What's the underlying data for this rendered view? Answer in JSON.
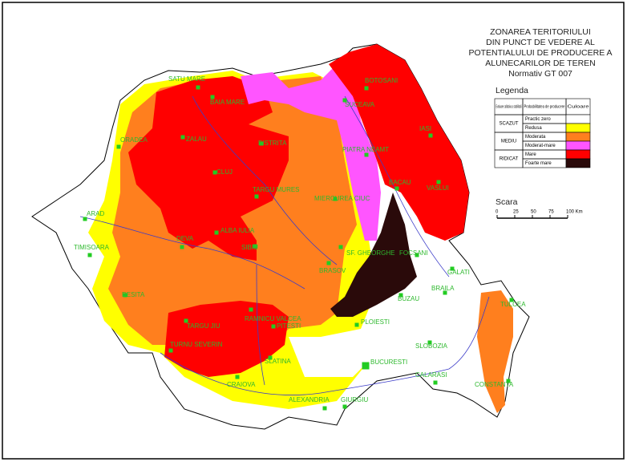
{
  "title": {
    "lines": [
      "ZONAREA TERITORIULUI",
      "DIN PUNCT DE VEDERE AL",
      "POTENTIALULUI DE PRODUCERE A",
      "ALUNECARILOR DE TEREN",
      "Normativ GT 007"
    ]
  },
  "legend": {
    "title": "Legenda",
    "headers": [
      "Evaluare calitativa a stabilitatii",
      "Probabilitatea de producere",
      "Culoare"
    ],
    "groups": [
      {
        "name": "SCAZUT",
        "rows": [
          {
            "label": "Practic zero",
            "color": "#ffffff"
          },
          {
            "label": "Redusa",
            "color": "#ffff00"
          }
        ]
      },
      {
        "name": "MEDIU",
        "rows": [
          {
            "label": "Moderata",
            "color": "#ff7f1e"
          },
          {
            "label": "Moderat-mare",
            "color": "#ff55ff"
          }
        ]
      },
      {
        "name": "RIDICAT",
        "rows": [
          {
            "label": "Mare",
            "color": "#ff0000"
          },
          {
            "label": "Foarte mare",
            "color": "#2a0a0a"
          }
        ]
      }
    ]
  },
  "scale": {
    "title": "Scara",
    "labels": [
      "0",
      "25",
      "50",
      "75",
      "100 Km"
    ]
  },
  "cities": [
    "SATU MARE",
    "BAIA MARE",
    "ORADEA",
    "ZALAU",
    "BISTRITA",
    "CLUJ",
    "TARGU MURES",
    "ARAD",
    "TIMISOARA",
    "DEVA",
    "ALBA IULIA",
    "SIBIU",
    "RESITA",
    "TARGU JIU",
    "RAMNICU VALCEA",
    "PITESTI",
    "TURNU SEVERIN",
    "CRAIOVA",
    "SLATINA",
    "ALEXANDRIA",
    "GIURGIU",
    "BUCURESTI",
    "BRASOV",
    "SF. GHEORGHE",
    "MIERCUREA CIUC",
    "PIATRA NEAMT",
    "SUCEAVA",
    "BOTOSANI",
    "IASI",
    "BACAU",
    "VASLUI",
    "FOCSANI",
    "BUZAU",
    "PLOIESTI",
    "GALATI",
    "BRAILA",
    "TULCEA",
    "SLOBOZIA",
    "CALARASI",
    "CONSTANTA"
  ]
}
